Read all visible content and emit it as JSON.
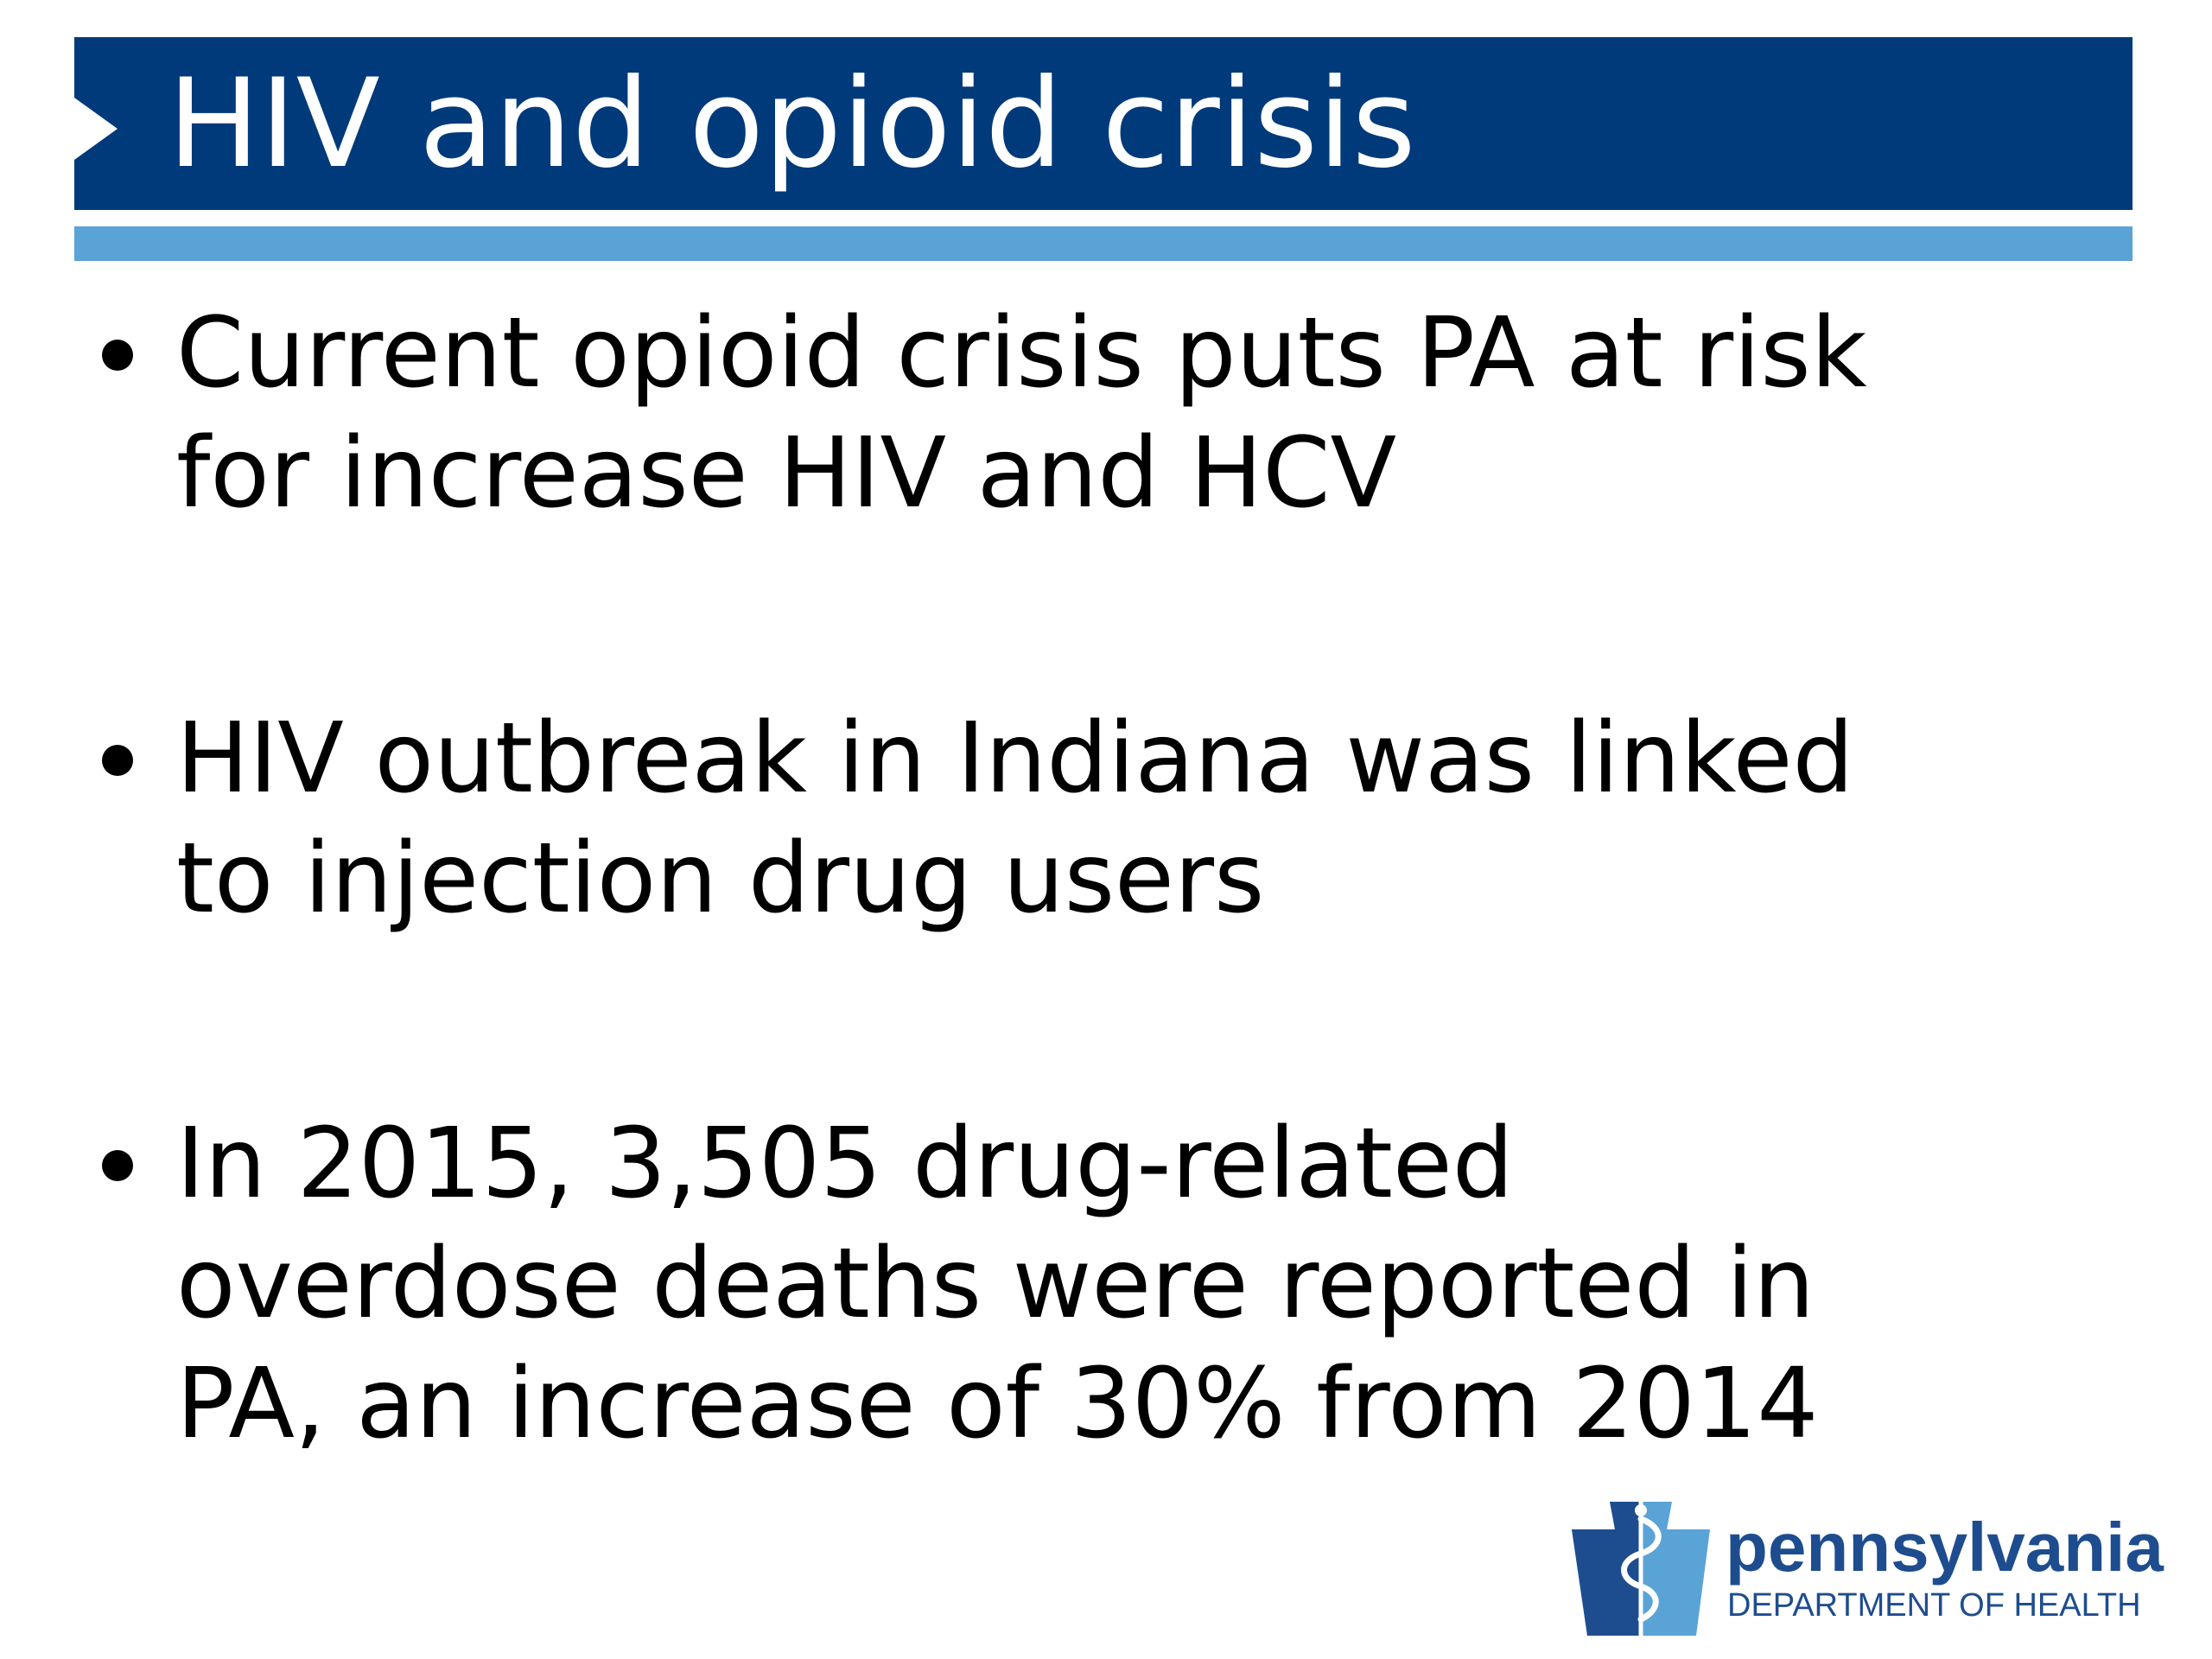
{
  "slide": {
    "title": "HIV and opioid crisis",
    "bullets": [
      {
        "lines": [
          "Current opioid crisis puts PA at risk",
          "for increase HIV and HCV"
        ]
      },
      {
        "lines": [
          "HIV outbreak in Indiana was linked",
          "to injection drug users"
        ]
      },
      {
        "lines": [
          "In 2015, 3,505 drug-related",
          "overdose deaths were reported in",
          "PA, an increase of 30% from 2014"
        ]
      }
    ]
  },
  "logo": {
    "name": "pennsylvania",
    "subtitle": "DEPARTMENT OF HEALTH",
    "icon": "keystone-caduceus-icon"
  },
  "colors": {
    "title_bar": "#003a7a",
    "accent_bar": "#5aa3d6",
    "logo_dark": "#1e4d8f",
    "logo_light": "#5aa3d6"
  }
}
